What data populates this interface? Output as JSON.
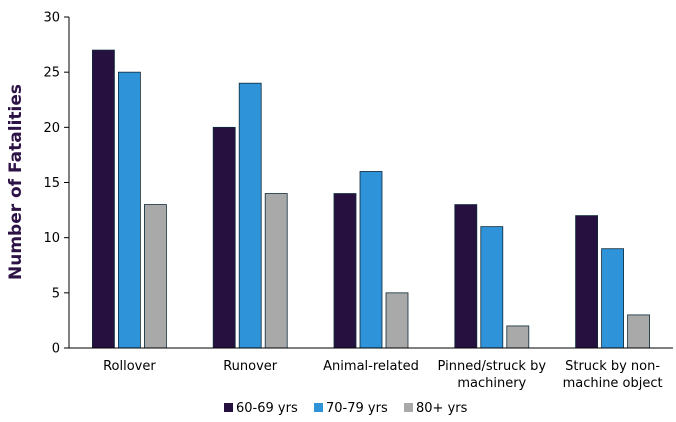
{
  "chart_data": {
    "type": "bar",
    "title": "",
    "xlabel": "",
    "ylabel": "Number of Fatalities",
    "ylim": [
      0,
      30
    ],
    "yticks": [
      0,
      5,
      10,
      15,
      20,
      25,
      30
    ],
    "grid": false,
    "legend_position": "bottom",
    "categories": [
      [
        "Rollover"
      ],
      [
        "Runover"
      ],
      [
        "Animal-related"
      ],
      [
        "Pinned/struck by",
        "machinery"
      ],
      [
        "Struck by non-",
        "machine object"
      ]
    ],
    "series": [
      {
        "name": "60-69 yrs",
        "color": "#25103f",
        "values": [
          27,
          20,
          14,
          13,
          12
        ]
      },
      {
        "name": "70-79 yrs",
        "color": "#2e93d8",
        "values": [
          25,
          24,
          16,
          11,
          9
        ]
      },
      {
        "name": "80+ yrs",
        "color": "#a9a9a9",
        "values": [
          13,
          14,
          5,
          2,
          3
        ]
      }
    ]
  }
}
